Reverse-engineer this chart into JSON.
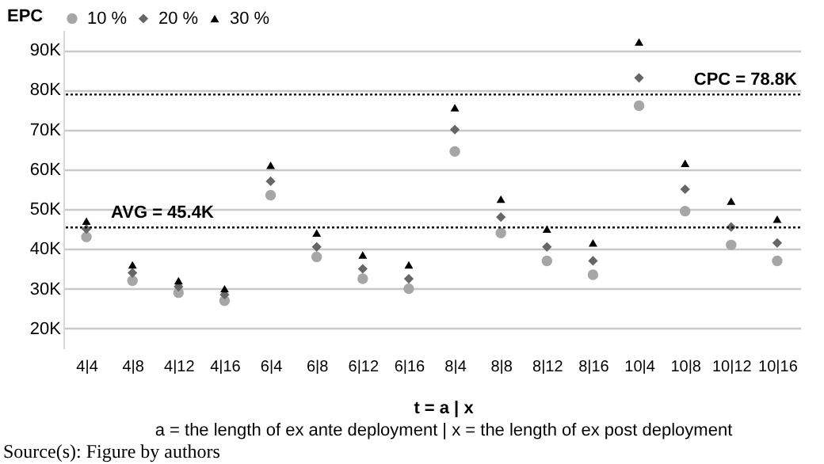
{
  "chart_data": {
    "type": "scatter",
    "ylabel": "EPC",
    "xlabel": "t = a | x",
    "categories": [
      "4|4",
      "4|8",
      "4|12",
      "4|16",
      "6|4",
      "6|8",
      "6|12",
      "6|16",
      "8|4",
      "8|8",
      "8|12",
      "8|16",
      "10|4",
      "10|8",
      "10|12",
      "10|16"
    ],
    "series": [
      {
        "name": "10 %",
        "color": "#a6a6a6",
        "marker": "circle",
        "values": [
          43,
          32,
          29,
          27,
          53.5,
          38,
          32.5,
          30,
          64.5,
          44,
          37,
          33.5,
          76,
          49.5,
          41,
          37
        ]
      },
      {
        "name": "20 %",
        "color": "#666666",
        "marker": "diamond",
        "values": [
          45,
          34,
          30.5,
          28.5,
          57,
          40.5,
          35,
          32.5,
          70,
          48,
          40.5,
          37,
          83,
          55,
          45.5,
          41.5
        ]
      },
      {
        "name": "30 %",
        "color": "#000000",
        "marker": "triangle",
        "values": [
          47,
          36,
          32,
          30,
          61,
          44,
          38.5,
          36,
          75.5,
          52.5,
          45,
          41.5,
          92,
          61.5,
          52,
          47.5
        ]
      }
    ],
    "ylim": [
      15,
      95
    ],
    "yticks": [
      {
        "value": 20,
        "label": "20K"
      },
      {
        "value": 30,
        "label": "30K"
      },
      {
        "value": 40,
        "label": "40K"
      },
      {
        "value": 50,
        "label": "50K"
      },
      {
        "value": 60,
        "label": "60K"
      },
      {
        "value": 70,
        "label": "70K"
      },
      {
        "value": 80,
        "label": "80K"
      },
      {
        "value": 90,
        "label": "90K"
      }
    ],
    "grid": "y",
    "legend": "top",
    "ref_lines": [
      {
        "axis": "y",
        "value": 45.4,
        "label": "AVG = 45.4K",
        "line_style": "dotted"
      },
      {
        "axis": "y",
        "value": 78.8,
        "label": "CPC = 78.8K",
        "line_style": "dotted"
      }
    ],
    "annotations": [
      "a = the length of ex ante deployment | x = the length of ex post deployment",
      "Source(s): Figure by authors"
    ]
  }
}
